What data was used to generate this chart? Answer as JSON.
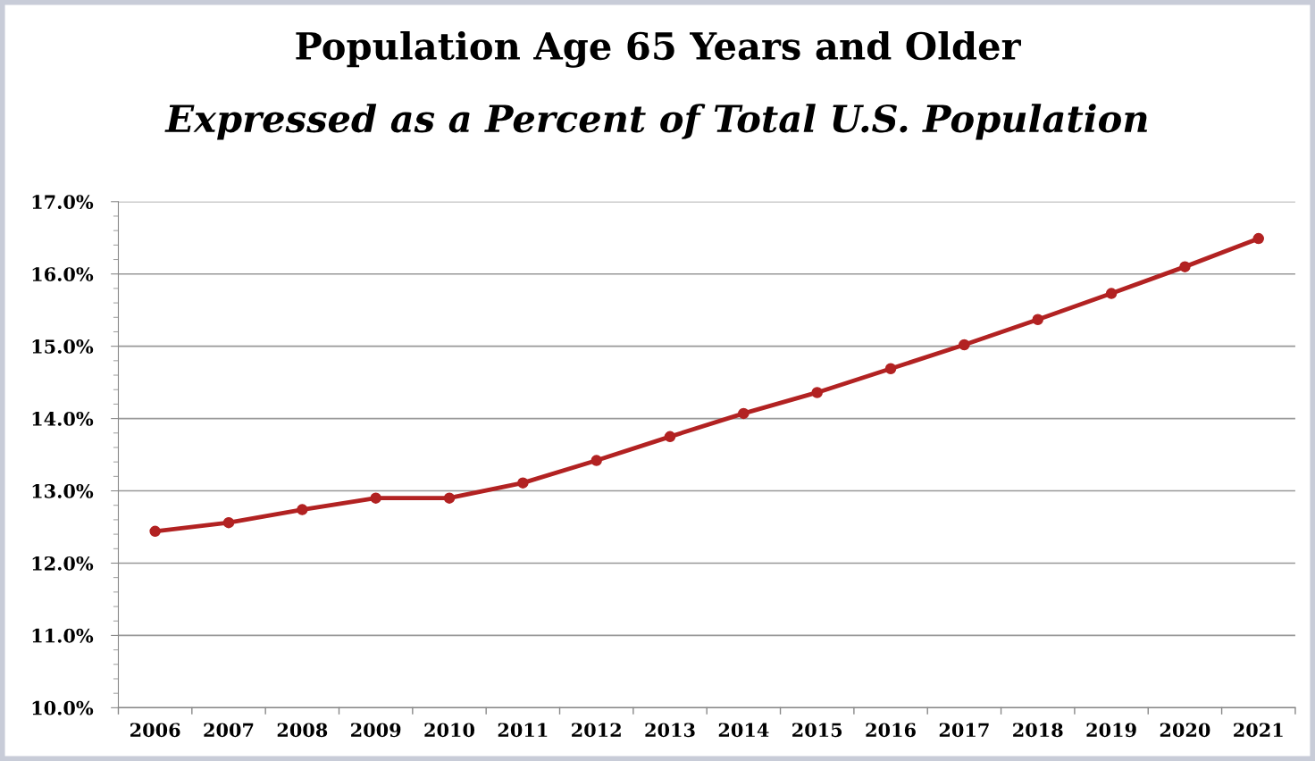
{
  "chart_data": {
    "type": "line",
    "title": "Population Age 65 Years and Older",
    "subtitle": "Expressed as a Percent of Total U.S. Population",
    "categories": [
      "2006",
      "2007",
      "2008",
      "2009",
      "2010",
      "2011",
      "2012",
      "2013",
      "2014",
      "2015",
      "2016",
      "2017",
      "2018",
      "2019",
      "2020",
      "2021"
    ],
    "series": [
      {
        "color": "#b22222",
        "values": [
          12.44,
          12.56,
          12.74,
          12.9,
          12.9,
          13.11,
          13.42,
          13.75,
          14.07,
          14.36,
          14.69,
          15.02,
          15.37,
          15.73,
          16.1,
          16.49
        ]
      }
    ],
    "ylim": [
      10,
      17
    ],
    "yticks": [
      {
        "value": 10,
        "label": "10.0%"
      },
      {
        "value": 11,
        "label": "11.0%"
      },
      {
        "value": 12,
        "label": "12.0%"
      },
      {
        "value": 13,
        "label": "13.0%"
      },
      {
        "value": 14,
        "label": "14.0%"
      },
      {
        "value": 15,
        "label": "15.0%"
      },
      {
        "value": 16,
        "label": "16.0%"
      },
      {
        "value": 17,
        "label": "17.0%"
      }
    ],
    "grid": "y",
    "marker": "circle",
    "line_style": "solid",
    "legend": false
  }
}
